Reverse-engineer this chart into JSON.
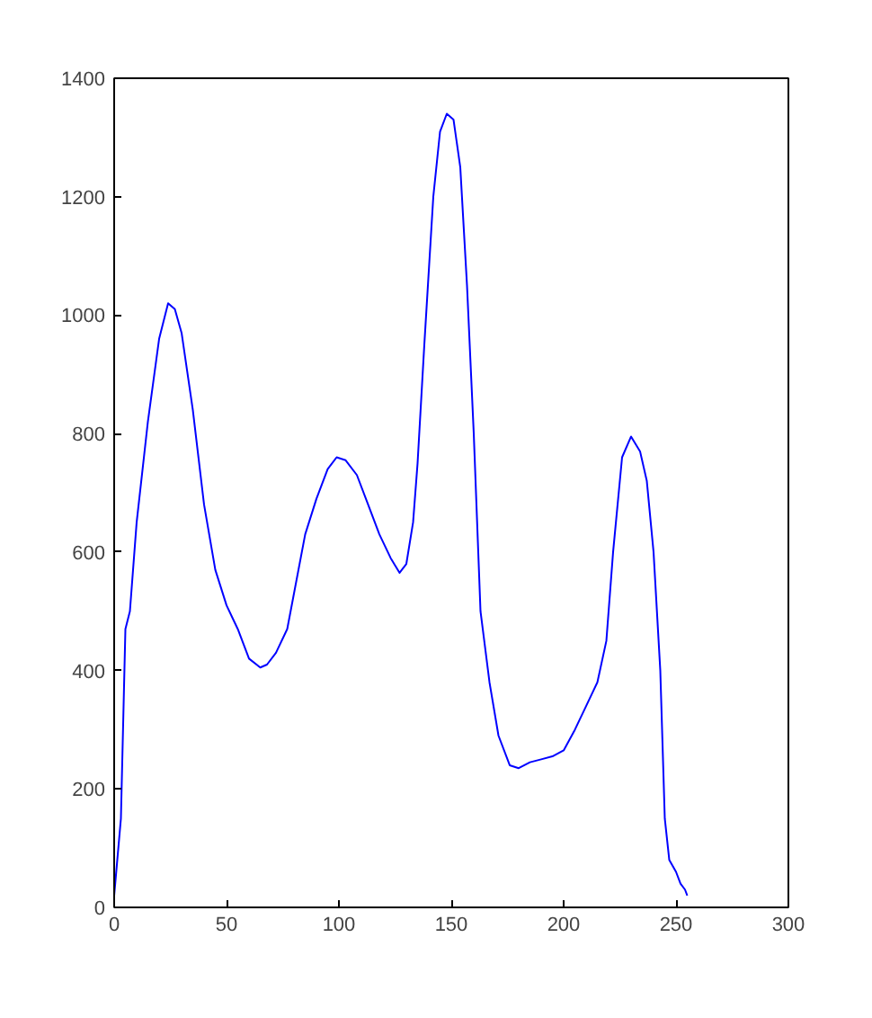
{
  "chart_data": {
    "type": "line",
    "xlim": [
      0,
      300
    ],
    "ylim": [
      0,
      1400
    ],
    "xticks": [
      0,
      50,
      100,
      150,
      200,
      250,
      300
    ],
    "yticks": [
      0,
      200,
      400,
      600,
      800,
      1000,
      1200,
      1400
    ],
    "grid": false,
    "marker": "none",
    "line_style": "solid",
    "series": [
      {
        "color": "#0000ff",
        "x": [
          0,
          3,
          5,
          7,
          10,
          15,
          20,
          24,
          27,
          30,
          35,
          40,
          45,
          50,
          55,
          60,
          65,
          68,
          72,
          77,
          80,
          85,
          90,
          95,
          99,
          103,
          108,
          113,
          118,
          123,
          127,
          130,
          133,
          135,
          138,
          142,
          145,
          148,
          151,
          154,
          157,
          160,
          163,
          167,
          171,
          176,
          180,
          185,
          190,
          195,
          200,
          205,
          210,
          215,
          219,
          222,
          226,
          230,
          234,
          237,
          240,
          243,
          245,
          247,
          250,
          252,
          254,
          255
        ],
        "values": [
          20,
          150,
          470,
          500,
          650,
          820,
          960,
          1020,
          1010,
          970,
          840,
          680,
          570,
          510,
          470,
          420,
          405,
          410,
          430,
          470,
          530,
          630,
          690,
          740,
          760,
          755,
          730,
          680,
          630,
          590,
          565,
          580,
          650,
          750,
          950,
          1200,
          1310,
          1340,
          1330,
          1250,
          1050,
          800,
          500,
          380,
          290,
          240,
          235,
          245,
          250,
          255,
          265,
          300,
          340,
          380,
          450,
          600,
          760,
          795,
          770,
          720,
          600,
          400,
          150,
          80,
          60,
          40,
          30,
          20
        ]
      }
    ]
  }
}
